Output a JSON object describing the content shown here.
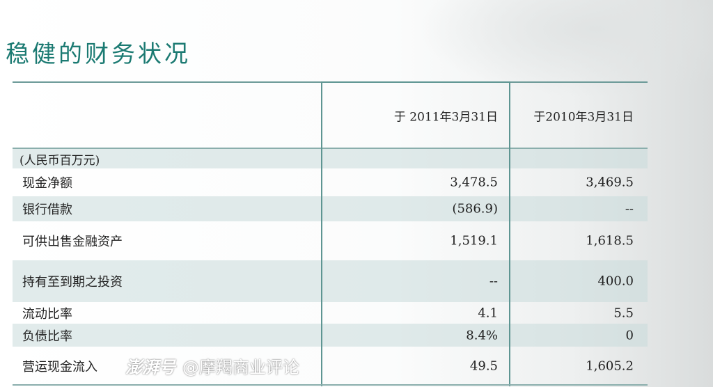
{
  "title": "稳健的财务状况",
  "table": {
    "columns": [
      "于 2011年3月31日",
      "于2010年3月31日"
    ],
    "unit_label": "(人民币百万元)",
    "rows": [
      {
        "label": "现金净额",
        "v2011": "3,478.5",
        "v2010": "3,469.5"
      },
      {
        "label": "银行借款",
        "v2011": "(586.9)",
        "v2010": "--"
      },
      {
        "label": "可供出售金融资产",
        "v2011": "1,519.1",
        "v2010": "1,618.5"
      },
      {
        "label": "持有至到期之投资",
        "v2011": "--",
        "v2010": "400.0"
      },
      {
        "label": "流动比率",
        "v2011": "4.1",
        "v2010": "5.5"
      },
      {
        "label": "负债比率",
        "v2011": "8.4%",
        "v2010": "0"
      },
      {
        "label": "营运现金流入",
        "v2011": "49.5",
        "v2010": "1,605.2"
      }
    ]
  },
  "watermark": {
    "brand": "澎湃号",
    "text": "@摩羯商业评论"
  },
  "colors": {
    "title": "#1b7a72",
    "border": "#5e9592",
    "shade": "#d3e2e2"
  }
}
